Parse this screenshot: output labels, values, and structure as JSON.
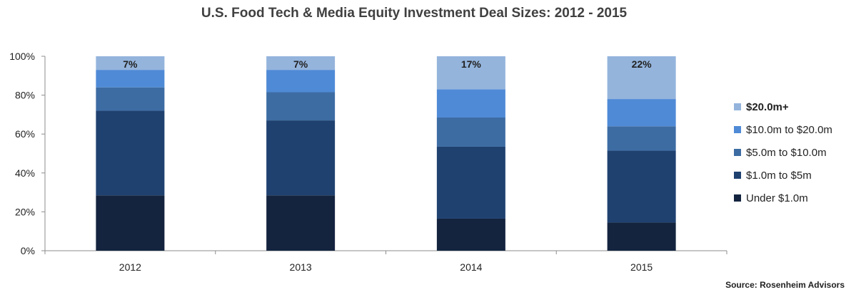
{
  "chart_data": {
    "type": "bar",
    "stacked": true,
    "title": "U.S. Food Tech & Media Equity Investment Deal Sizes: 2012 - 2015",
    "categories": [
      "2012",
      "2013",
      "2014",
      "2015"
    ],
    "ylim": [
      0,
      100
    ],
    "y_ticks": [
      "0%",
      "20%",
      "40%",
      "60%",
      "80%",
      "100%"
    ],
    "y_tick_values": [
      0,
      20,
      40,
      60,
      80,
      100
    ],
    "grid": false,
    "legend_position": "right",
    "series": [
      {
        "name": "Under $1.0m",
        "color": "#14243f",
        "values": [
          28.5,
          28.5,
          16.5,
          14.5
        ]
      },
      {
        "name": "$1.0m to $5m",
        "color": "#1f4170",
        "values": [
          43.5,
          38.5,
          37.0,
          37.0
        ]
      },
      {
        "name": "$5.0m to $10.0m",
        "color": "#3d6ca3",
        "values": [
          12.0,
          14.5,
          15.0,
          12.5
        ]
      },
      {
        "name": "$10.0m to $20.0m",
        "color": "#4f8ad6",
        "values": [
          9.0,
          11.5,
          14.5,
          14.0
        ]
      },
      {
        "name": "$20.0m+",
        "color": "#94b4dc",
        "values": [
          7.0,
          7.0,
          17.0,
          22.0
        ],
        "labels": [
          "7%",
          "7%",
          "17%",
          "22%"
        ]
      }
    ],
    "source": "Source: Rosenheim Advisors"
  }
}
